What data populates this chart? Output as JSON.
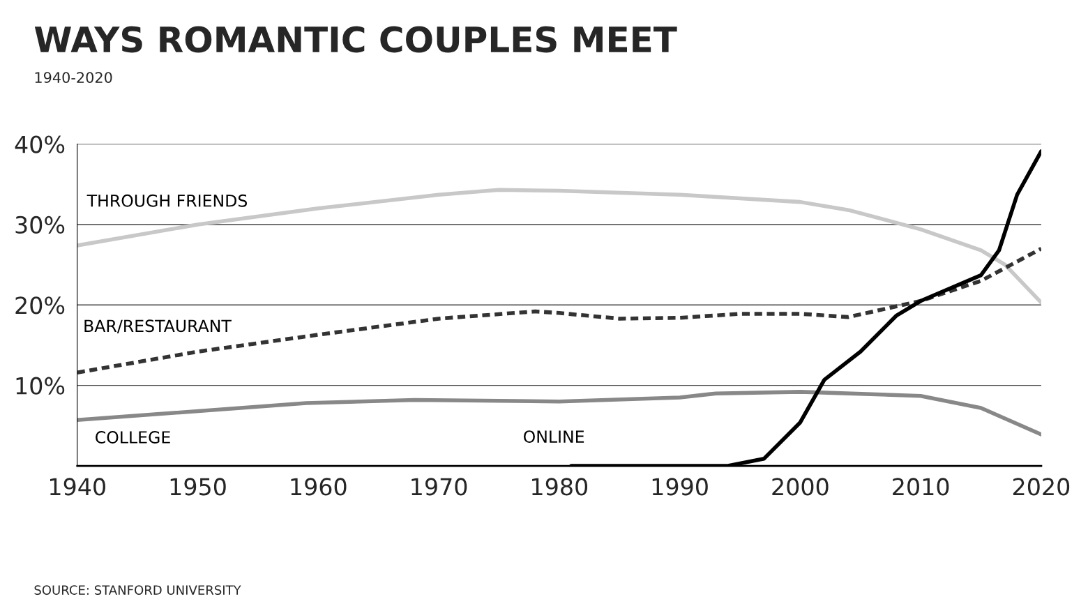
{
  "chart_data": {
    "type": "line",
    "title": "WAYS ROMANTIC COUPLES MEET",
    "subtitle": "1940-2020",
    "annotations": [
      "SOURCE: STANFORD UNIVERSITY"
    ],
    "xlim": [
      1940,
      2020
    ],
    "xticks": [
      1940,
      1950,
      1960,
      1970,
      1980,
      1990,
      2000,
      2010,
      2020
    ],
    "ylim": [
      0,
      40
    ],
    "yticks": [
      {
        "value": 10,
        "label": "10%"
      },
      {
        "value": 20,
        "label": "20%"
      },
      {
        "value": 30,
        "label": "30%"
      },
      {
        "value": 40,
        "label": "40%"
      }
    ],
    "grid": "y",
    "legend": false,
    "marker": "none",
    "series": [
      {
        "name": "THROUGH FRIENDS",
        "color": "#c8c8c8",
        "line_style": "solid",
        "x": [
          1940,
          1950,
          1960,
          1970,
          1975,
          1980,
          1990,
          2000,
          2004,
          2010,
          2015,
          2017,
          2020
        ],
        "values": [
          27.4,
          30,
          32,
          33.7,
          34.3,
          34.2,
          33.7,
          32.8,
          31.8,
          29.4,
          26.8,
          25,
          20.3
        ]
      },
      {
        "name": "BAR/RESTAURANT",
        "color": "#333333",
        "line_style": "dashed",
        "x": [
          1940,
          1950,
          1960,
          1970,
          1978,
          1980,
          1985,
          1990,
          1995,
          2000,
          2004,
          2010,
          2015,
          2020
        ],
        "values": [
          11.6,
          14.2,
          16.3,
          18.3,
          19.2,
          19,
          18.3,
          18.4,
          18.9,
          18.9,
          18.5,
          20.5,
          23,
          27
        ]
      },
      {
        "name": "COLLEGE",
        "color": "#888888",
        "line_style": "solid",
        "x": [
          1940,
          1959,
          1968,
          1980,
          1990,
          1993,
          2000,
          2010,
          2015,
          2020
        ],
        "values": [
          5.7,
          7.8,
          8.2,
          8,
          8.5,
          9,
          9.2,
          8.7,
          7.2,
          3.9
        ]
      },
      {
        "name": "ONLINE",
        "color": "#000000",
        "line_style": "solid",
        "x": [
          1981,
          1994,
          1997,
          2000,
          2002,
          2005,
          2008,
          2010,
          2015,
          2016.5,
          2018,
          2020
        ],
        "values": [
          0,
          0,
          0.9,
          5.4,
          10.7,
          14.2,
          18.7,
          20.5,
          23.7,
          26.8,
          33.7,
          39.1
        ]
      }
    ]
  }
}
